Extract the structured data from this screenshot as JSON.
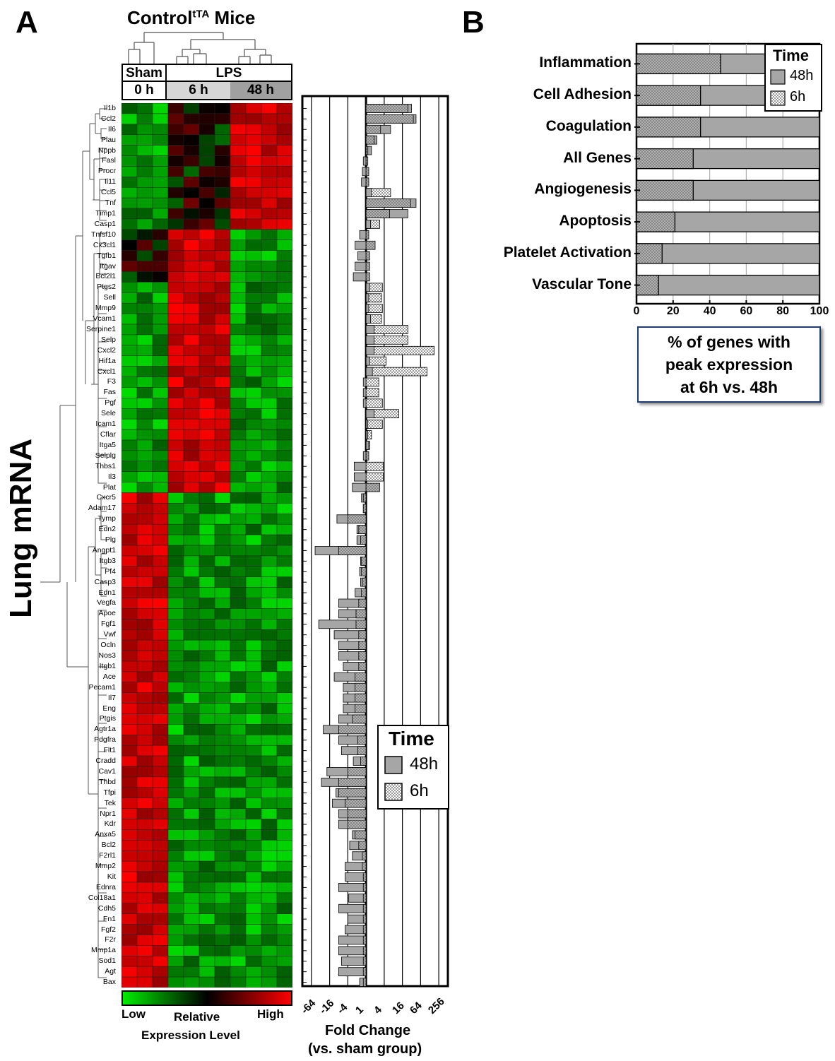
{
  "panel_a": {
    "letter": "A",
    "title_main": "Control",
    "title_sup": "tTA",
    "title_tail": " Mice",
    "group_sham": "Sham",
    "group_lps": "LPS",
    "time_0": "0 h",
    "time_6": "6 h",
    "time_48": "48 h",
    "side_label": "Lung mRNA",
    "colorbar_low": "Low",
    "colorbar_high": "High",
    "colorbar_mid": "Relative",
    "colorbar_caption": "Expression Level",
    "fold_caption_1": "Fold Change",
    "fold_caption_2": "(vs. sham group)",
    "legend_title": "Time",
    "legend_48": "48h",
    "legend_6": "6h",
    "colors": {
      "green": "#00cc00",
      "black": "#000000",
      "red": "#ff0000",
      "bar_fill": "#a6a6a6"
    }
  },
  "panel_b": {
    "letter": "B",
    "legend_title": "Time",
    "legend_48": "48h",
    "legend_6": "6h",
    "caption_1": "% of genes with",
    "caption_2": "peak expression",
    "caption_3": "at 6h vs. 48h"
  },
  "chart_data": [
    {
      "type": "heatmap",
      "title": "Controlᵗᵀᴬ Mice",
      "columns": [
        "Sham 0 h",
        "Sham 0 h",
        "Sham 0 h",
        "LPS 6 h",
        "LPS 6 h",
        "LPS 6 h",
        "LPS 6 h",
        "LPS 48 h",
        "LPS 48 h",
        "LPS 48 h",
        "LPS 48 h"
      ],
      "scale": [
        "Low",
        "High"
      ],
      "genes": [
        "Il1b",
        "Ccl2",
        "Il6",
        "Plau",
        "Nppb",
        "Fasl",
        "Procr",
        "Il11",
        "Ccl5",
        "Tnf",
        "Timp1",
        "Casp1",
        "Tnfsf10",
        "Cx3cl1",
        "Tgfb1",
        "Itgav",
        "Bcl2l1",
        "Ptgs2",
        "Sell",
        "Mmp9",
        "Vcam1",
        "Serpine1",
        "Selp",
        "Cxcl2",
        "Hif1a",
        "Cxcl1",
        "F3",
        "Fas",
        "Pgf",
        "Sele",
        "Icam1",
        "Cflar",
        "Itga5",
        "Selplg",
        "Thbs1",
        "Il3",
        "Plat",
        "Cxcr5",
        "Adam17",
        "Tymp",
        "Edn2",
        "Plg",
        "Angpt1",
        "Itgb3",
        "Pf4",
        "Casp3",
        "Edn1",
        "Vegfa",
        "Apoe",
        "Fgf1",
        "Vwf",
        "Ocln",
        "Nos3",
        "Itgb1",
        "Ace",
        "Pecam1",
        "Il7",
        "Eng",
        "Ptgis",
        "Agtr1a",
        "Pdgfra",
        "Flt1",
        "Cradd",
        "Cav1",
        "Thbd",
        "Tfpi",
        "Tek",
        "Npr1",
        "Kdr",
        "Anxa5",
        "Bcl2",
        "F2rl1",
        "Mmp2",
        "Kit",
        "Ednra",
        "Col18a1",
        "Cdh5",
        "Fn1",
        "Fgf2",
        "F2r",
        "Mmp1a",
        "Sod1",
        "Agt",
        "Bax"
      ],
      "group_pattern": [
        {
          "genes_from": "Il1b",
          "genes_to": "Casp1",
          "sham": "low",
          "lps_6h": "mid",
          "lps_48h": "high"
        },
        {
          "genes_from": "Tnfsf10",
          "genes_to": "Bcl2l1",
          "sham": "mid",
          "lps_6h": "high",
          "lps_48h": "low"
        },
        {
          "genes_from": "Ptgs2",
          "genes_to": "Plat",
          "sham": "low",
          "lps_6h": "high",
          "lps_48h": "low"
        },
        {
          "genes_from": "Cxcr5",
          "genes_to": "Bax",
          "sham": "high",
          "lps_6h": "low",
          "lps_48h": "low"
        }
      ]
    },
    {
      "type": "bar",
      "orientation": "horizontal",
      "xlabel": "Fold Change (vs. sham group)",
      "x_ticks": [
        "-64",
        "-16",
        "-4",
        "1",
        "4",
        "16",
        "64",
        "256"
      ],
      "x_scale": "log2",
      "legend": [
        "48h",
        "6h"
      ],
      "legend_position": "bottom-right",
      "categories": [
        "Il1b",
        "Ccl2",
        "Il6",
        "Plau",
        "Nppb",
        "Fasl",
        "Procr",
        "Il11",
        "Ccl5",
        "Tnf",
        "Timp1",
        "Casp1",
        "Tnfsf10",
        "Cx3cl1",
        "Tgfb1",
        "Itgav",
        "Bcl2l1",
        "Ptgs2",
        "Sell",
        "Mmp9",
        "Vcam1",
        "Serpine1",
        "Selp",
        "Cxcl2",
        "Hif1a",
        "Cxcl1",
        "F3",
        "Fas",
        "Pgf",
        "Sele",
        "Icam1",
        "Cflar",
        "Itga5",
        "Selplg",
        "Thbs1",
        "Il3",
        "Plat",
        "Cxcr5",
        "Adam17",
        "Tymp",
        "Edn2",
        "Plg",
        "Angpt1",
        "Itgb3",
        "Pf4",
        "Casp3",
        "Edn1",
        "Vegfa",
        "Apoe",
        "Fgf1",
        "Vwf",
        "Ocln",
        "Nos3",
        "Itgb1",
        "Ace",
        "Pecam1",
        "Il7",
        "Eng",
        "Ptgis",
        "Agtr1a",
        "Pdgfra",
        "Flt1",
        "Cradd",
        "Cav1",
        "Thbd",
        "Tfpi",
        "Tek",
        "Npr1",
        "Kdr",
        "Anxa5",
        "Bcl2",
        "F2rl1",
        "Mmp2",
        "Kit",
        "Ednra",
        "Col18a1",
        "Cdh5",
        "Fn1",
        "Fgf2",
        "F2r",
        "Mmp1a",
        "Sod1",
        "Agt",
        "Bax"
      ],
      "series": [
        {
          "name": "48h",
          "log2_values": [
            5.0,
            5.5,
            2.7,
            1.2,
            0.6,
            -0.3,
            -0.4,
            -0.5,
            0.6,
            5.5,
            4.6,
            0.5,
            -0.7,
            -1.2,
            -0.9,
            -1.2,
            -1.4,
            0.4,
            0.3,
            0.3,
            0.5,
            0.9,
            0.9,
            0.9,
            0.4,
            0.7,
            -0.3,
            -0.3,
            -0.3,
            0.9,
            0.2,
            0.2,
            0.3,
            -0.3,
            -1.3,
            -1.3,
            -1.5,
            -0.5,
            -0.3,
            -3.2,
            -1.0,
            -1.0,
            -5.6,
            -0.6,
            -0.7,
            -0.6,
            -1.2,
            -3.0,
            -3.0,
            -5.2,
            -3.5,
            -3.0,
            -3.0,
            -2.5,
            -3.5,
            -2.5,
            -2.5,
            -2.5,
            -3.0,
            -4.7,
            -3.0,
            -2.7,
            -1.4,
            -4.3,
            -4.9,
            -3.3,
            -3.7,
            -3.0,
            -3.0,
            -1.5,
            -1.8,
            -1.5,
            -2.3,
            -2.3,
            -3.0,
            -1.9,
            -3.0,
            -2.0,
            -2.3,
            -3.0,
            -3.0,
            -2.7,
            -3.0,
            -0.7
          ]
        },
        {
          "name": "6h",
          "log2_values": [
            4.6,
            5.2,
            1.6,
            0.9,
            0.2,
            0.2,
            0.3,
            0.3,
            2.7,
            4.9,
            2.6,
            1.5,
            0.3,
            1.0,
            0.4,
            0.4,
            0.4,
            1.8,
            1.7,
            1.8,
            1.7,
            4.6,
            4.6,
            7.5,
            2.2,
            6.7,
            1.4,
            1.4,
            1.8,
            3.6,
            1.8,
            0.6,
            0.4,
            0.3,
            1.9,
            1.9,
            1.5,
            -0.3,
            -0.3,
            -2.0,
            -0.8,
            -0.6,
            -3.0,
            -0.5,
            -0.5,
            -0.4,
            -0.5,
            -0.8,
            -1.1,
            -1.1,
            -0.8,
            -0.8,
            -0.8,
            -0.8,
            -1.2,
            -1.2,
            -1.2,
            -1.2,
            -1.5,
            -3.0,
            -0.9,
            -0.9,
            -0.6,
            -2.0,
            -3.0,
            -3.0,
            -2.3,
            -2.0,
            -2.0,
            -1.2,
            -0.8,
            -0.4,
            -0.4,
            -0.3,
            -0.3,
            -0.3,
            -0.3,
            -0.3,
            -0.3,
            -0.3,
            -0.3,
            -0.3,
            -0.3,
            -0.3
          ]
        }
      ]
    },
    {
      "type": "bar",
      "orientation": "horizontal",
      "stacked": "overlaid",
      "categories": [
        "Inflammation",
        "Cell Adhesion",
        "Coagulation",
        "All Genes",
        "Angiogenesis",
        "Apoptosis",
        "Platelet Activation",
        "Vascular Tone"
      ],
      "series": [
        {
          "name": "48h",
          "values": [
            54,
            65,
            65,
            69,
            69,
            79,
            86,
            88
          ]
        },
        {
          "name": "6h",
          "values": [
            46,
            35,
            35,
            31,
            31,
            21,
            14,
            12
          ]
        }
      ],
      "xlim": [
        0,
        100
      ],
      "x_ticks": [
        "0",
        "20",
        "40",
        "60",
        "80",
        "100"
      ],
      "xlabel": "% of genes with peak expression at 6h vs. 48h",
      "legend": [
        "48h",
        "6h"
      ],
      "legend_position": "top-right",
      "grid": true
    }
  ]
}
